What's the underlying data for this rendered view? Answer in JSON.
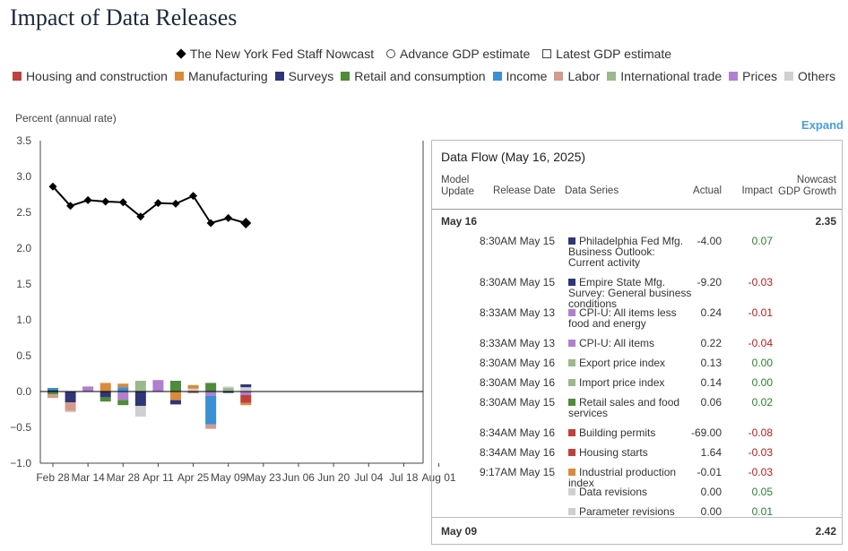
{
  "page": {
    "title": "Impact of Data Releases",
    "expand_label": "Expand"
  },
  "legend_top": [
    {
      "label": "The New York Fed Staff Nowcast",
      "symbol": "diamond"
    },
    {
      "label": "Advance GDP estimate",
      "symbol": "circle"
    },
    {
      "label": "Latest GDP estimate",
      "symbol": "square"
    }
  ],
  "legend_categories": [
    {
      "label": "Housing and construction",
      "color": "#c0413b"
    },
    {
      "label": "Manufacturing",
      "color": "#d98b3a"
    },
    {
      "label": "Surveys",
      "color": "#2f3677"
    },
    {
      "label": "Retail and consumption",
      "color": "#4e8b3a"
    },
    {
      "label": "Income",
      "color": "#3a8fd6"
    },
    {
      "label": "Labor",
      "color": "#d49a8c"
    },
    {
      "label": "International trade",
      "color": "#9cb88c"
    },
    {
      "label": "Prices",
      "color": "#b07fcf"
    },
    {
      "label": "Others",
      "color": "#cfcfcf"
    }
  ],
  "chart_data": {
    "type": "line",
    "ylabel": "Percent (annual rate)",
    "ylim": [
      -1.0,
      3.5
    ],
    "yticks": [
      "3.5",
      "3.0",
      "2.5",
      "2.0",
      "1.5",
      "1.0",
      "0.5",
      "0.0",
      "−0.5",
      "−1.0"
    ],
    "ytick_values": [
      3.5,
      3.0,
      2.5,
      2.0,
      1.5,
      1.0,
      0.5,
      0.0,
      -0.5,
      -1.0
    ],
    "xticks": [
      "Feb 28",
      "Mar 14",
      "Mar 28",
      "Apr 11",
      "Apr 25",
      "May 09",
      "May 23",
      "Jun 06",
      "Jun 20",
      "Jul 04",
      "Jul 18",
      "Aug 01"
    ],
    "x_dates": [
      "Feb 28",
      "Mar 07",
      "Mar 14",
      "Mar 21",
      "Mar 28",
      "Apr 04",
      "Apr 11",
      "Apr 18",
      "Apr 25",
      "May 02",
      "May 09",
      "May 16"
    ],
    "nowcast": {
      "name": "The New York Fed Staff Nowcast",
      "values": [
        2.86,
        2.59,
        2.67,
        2.65,
        2.64,
        2.44,
        2.63,
        2.62,
        2.73,
        2.35,
        2.42,
        2.35
      ]
    },
    "impacts": [
      [
        {
          "cat": "Surveys",
          "v": 0.02
        },
        {
          "cat": "Income",
          "v": 0.03
        },
        {
          "cat": "Retail and consumption",
          "v": -0.04
        },
        {
          "cat": "Labor",
          "v": -0.05
        }
      ],
      [
        {
          "cat": "Surveys",
          "v": -0.15
        },
        {
          "cat": "Labor",
          "v": -0.12
        },
        {
          "cat": "Others",
          "v": -0.02
        }
      ],
      [
        {
          "cat": "Prices",
          "v": 0.07
        }
      ],
      [
        {
          "cat": "Manufacturing",
          "v": 0.12
        },
        {
          "cat": "Surveys",
          "v": -0.08
        },
        {
          "cat": "Retail and consumption",
          "v": -0.06
        }
      ],
      [
        {
          "cat": "Income",
          "v": 0.06
        },
        {
          "cat": "Manufacturing",
          "v": 0.05
        },
        {
          "cat": "Prices",
          "v": -0.12
        },
        {
          "cat": "Retail and consumption",
          "v": -0.07
        }
      ],
      [
        {
          "cat": "International trade",
          "v": 0.15
        },
        {
          "cat": "Surveys",
          "v": -0.2
        },
        {
          "cat": "Others",
          "v": -0.15
        }
      ],
      [
        {
          "cat": "Prices",
          "v": 0.16
        }
      ],
      [
        {
          "cat": "Retail and consumption",
          "v": 0.15
        },
        {
          "cat": "Manufacturing",
          "v": -0.12
        },
        {
          "cat": "Surveys",
          "v": -0.06
        }
      ],
      [
        {
          "cat": "Others",
          "v": 0.04
        },
        {
          "cat": "Manufacturing",
          "v": 0.05
        },
        {
          "cat": "Housing and construction",
          "v": -0.02
        }
      ],
      [
        {
          "cat": "Retail and consumption",
          "v": 0.12
        },
        {
          "cat": "Prices",
          "v": -0.06
        },
        {
          "cat": "Income",
          "v": -0.4
        },
        {
          "cat": "Labor",
          "v": -0.06
        }
      ],
      [
        {
          "cat": "International trade",
          "v": 0.05
        },
        {
          "cat": "Others",
          "v": 0.02
        },
        {
          "cat": "Surveys",
          "v": -0.02
        }
      ],
      [
        {
          "cat": "Others",
          "v": 0.06
        },
        {
          "cat": "Surveys",
          "v": 0.04
        },
        {
          "cat": "Prices",
          "v": -0.05
        },
        {
          "cat": "Housing and construction",
          "v": -0.11
        },
        {
          "cat": "Manufacturing",
          "v": -0.03
        }
      ]
    ]
  },
  "dataflow": {
    "title": "Data Flow (May 16, 2025)",
    "headers": {
      "model_update": "Model\nUpdate",
      "release_date": "Release Date",
      "data_series": "Data Series",
      "actual": "Actual",
      "impact": "Impact",
      "growth": "Nowcast\nGDP Growth"
    },
    "current_date": "May 16",
    "current_growth": "2.35",
    "rows": [
      {
        "time": "8:30AM May 15",
        "series": "Philadelphia Fed Mfg. Business Outlook: Current activity",
        "color": "#2f3677",
        "actual": "-4.00",
        "impact": "0.07"
      },
      {
        "time": "8:30AM May 15",
        "series": "Empire State Mfg. Survey: General business conditions",
        "color": "#2f3677",
        "actual": "-9.20",
        "impact": "-0.03"
      },
      {
        "time": "8:33AM May 13",
        "series": "CPI-U: All items less food and energy",
        "color": "#b07fcf",
        "actual": "0.24",
        "impact": "-0.01"
      },
      {
        "time": "8:33AM May 13",
        "series": "CPI-U: All items",
        "color": "#b07fcf",
        "actual": "0.22",
        "impact": "-0.04"
      },
      {
        "time": "8:30AM May 16",
        "series": "Export price index",
        "color": "#9cb88c",
        "actual": "0.13",
        "impact": "0.00"
      },
      {
        "time": "8:30AM May 16",
        "series": "Import price index",
        "color": "#9cb88c",
        "actual": "0.14",
        "impact": "0.00"
      },
      {
        "time": "8:30AM May 15",
        "series": "Retail sales and food services",
        "color": "#4e8b3a",
        "actual": "0.06",
        "impact": "0.02"
      },
      {
        "time": "8:34AM May 16",
        "series": "Building permits",
        "color": "#c0413b",
        "actual": "-69.00",
        "impact": "-0.08"
      },
      {
        "time": "8:34AM May 16",
        "series": "Housing starts",
        "color": "#c0413b",
        "actual": "1.64",
        "impact": "-0.03"
      },
      {
        "time": "9:17AM May 15",
        "series": "Industrial production index",
        "color": "#d98b3a",
        "actual": "-0.01",
        "impact": "-0.03"
      },
      {
        "time": "",
        "series": "Data revisions",
        "color": "#cfcfcf",
        "actual": "0.00",
        "impact": "0.05"
      },
      {
        "time": "",
        "series": "Parameter revisions",
        "color": "#cfcfcf",
        "actual": "0.00",
        "impact": "0.01"
      }
    ],
    "prev_date": "May 09",
    "prev_growth": "2.42"
  }
}
